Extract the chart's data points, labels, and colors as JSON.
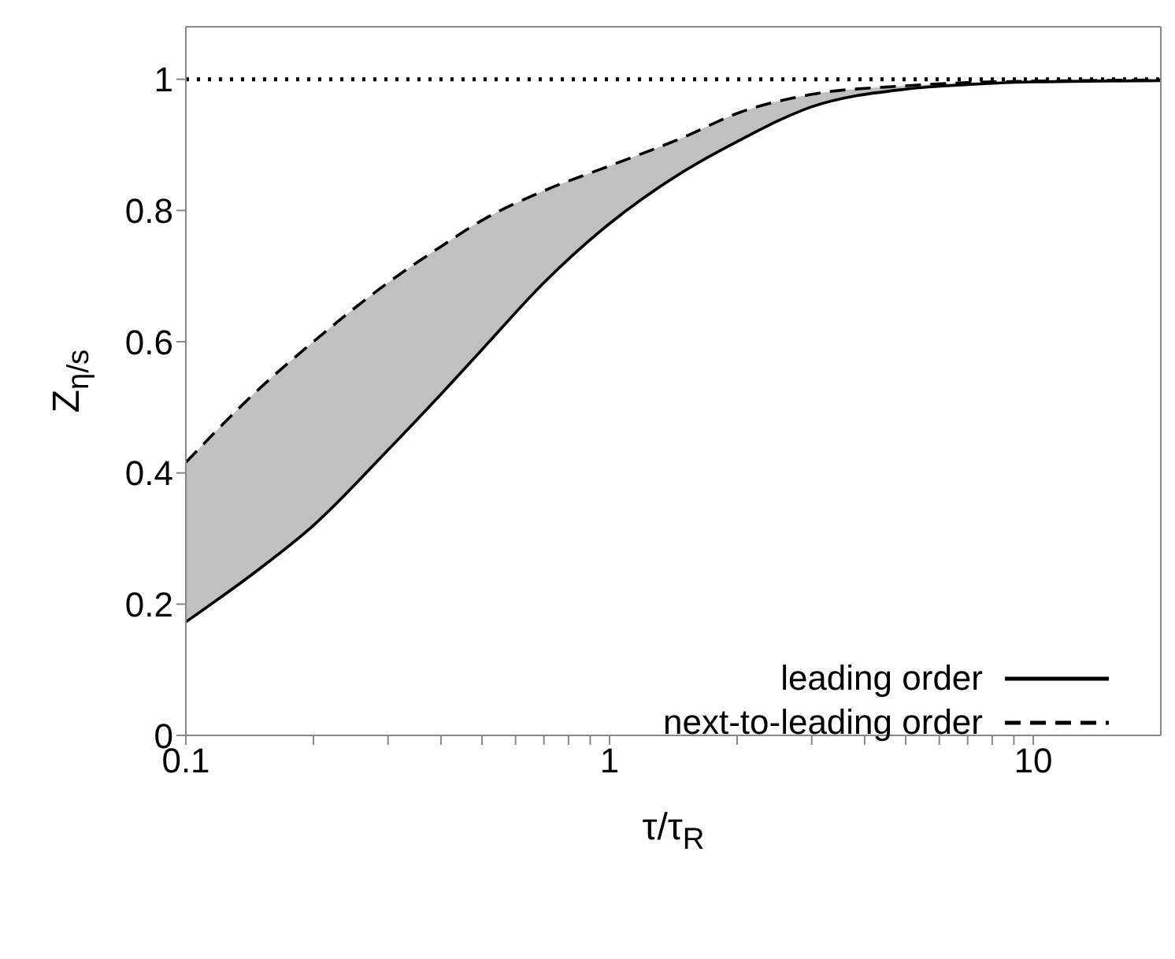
{
  "chart_data": {
    "type": "line",
    "xlabel": "τ/τ$_{R}$",
    "ylabel": "Z$_{η/s}$",
    "log": "x",
    "xlim": [
      0.1,
      20
    ],
    "ylim": [
      0,
      1.08
    ],
    "xticks": [
      0.1,
      {
        "value": 0.2,
        "label": null
      },
      {
        "value": 0.3,
        "label": null
      },
      {
        "value": 0.4,
        "label": null
      },
      {
        "value": 0.5,
        "label": null
      },
      {
        "value": 0.6,
        "label": null
      },
      {
        "value": 0.7,
        "label": null
      },
      {
        "value": 0.8,
        "label": null
      },
      {
        "value": 0.9,
        "label": null
      },
      1,
      {
        "value": 2,
        "label": null
      },
      {
        "value": 3,
        "label": null
      },
      {
        "value": 4,
        "label": null
      },
      {
        "value": 5,
        "label": null
      },
      {
        "value": 6,
        "label": null
      },
      {
        "value": 7,
        "label": null
      },
      {
        "value": 8,
        "label": null
      },
      {
        "value": 9,
        "label": null
      },
      10
    ],
    "yticks": [
      0,
      0.2,
      0.4,
      0.6,
      0.8,
      1
    ],
    "x": [
      0.1,
      0.15,
      0.2,
      0.3,
      0.4,
      0.5,
      0.7,
      1,
      1.5,
      2,
      3,
      5,
      7,
      10,
      20
    ],
    "series": [
      {
        "name": "leading order",
        "color": "#000000",
        "line_style": "solid",
        "values": [
          0.173,
          0.255,
          0.32,
          0.435,
          0.52,
          0.588,
          0.69,
          0.78,
          0.86,
          0.905,
          0.958,
          0.985,
          0.992,
          0.996,
          0.998
        ]
      },
      {
        "name": "next-to-leading order",
        "color": "#000000",
        "line_style": "dashed",
        "values": [
          0.416,
          0.53,
          0.6,
          0.69,
          0.745,
          0.785,
          0.83,
          0.868,
          0.912,
          0.948,
          0.977,
          0.99,
          0.995,
          0.997,
          0.999
        ],
        "lower": [
          0.173,
          0.255,
          0.32,
          0.435,
          0.52,
          0.588,
          0.69,
          0.78,
          0.86,
          0.905,
          0.958,
          0.985,
          0.992,
          0.996,
          0.998
        ],
        "upper": [
          0.416,
          0.53,
          0.6,
          0.69,
          0.745,
          0.785,
          0.83,
          0.868,
          0.912,
          0.948,
          0.977,
          0.99,
          0.995,
          0.997,
          0.999
        ]
      }
    ],
    "ref_lines": [
      {
        "axis": "y",
        "value": 1,
        "line_style": "dotted",
        "color": "#000000"
      }
    ],
    "legend": "bottom right",
    "grid": false,
    "marker": "none"
  }
}
